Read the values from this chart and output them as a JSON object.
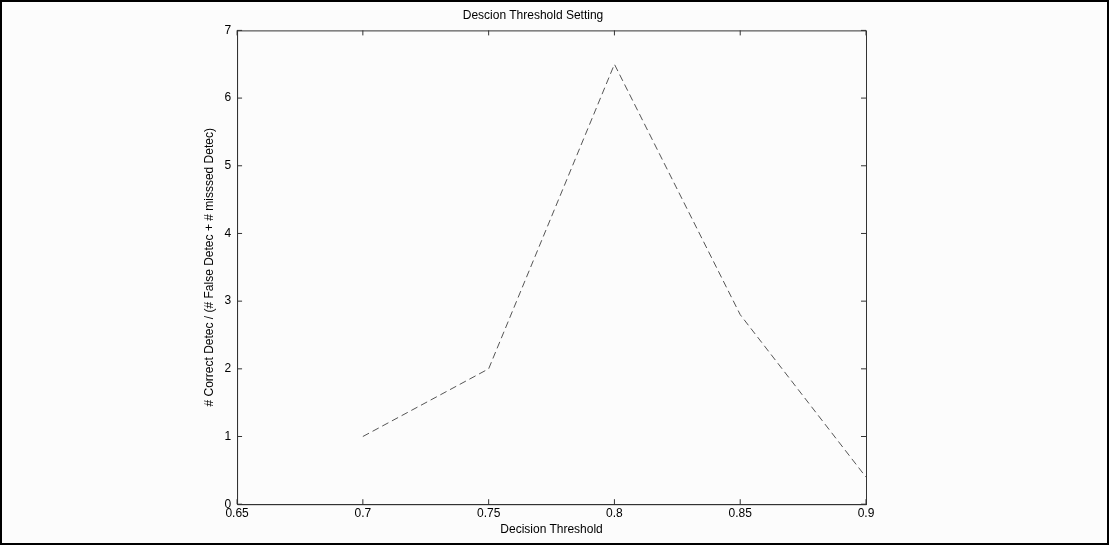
{
  "chart_data": {
    "type": "line",
    "title": "Descion Threshold Setting",
    "xlabel": "Decision Threshold",
    "ylabel": "# Correct Detec / (# False Detec + # misssed Detec)",
    "x": [
      0.7,
      0.75,
      0.8,
      0.85,
      0.9
    ],
    "series": [
      {
        "color": "#555555",
        "values": [
          1.0,
          2.0,
          6.5,
          2.8,
          0.4
        ]
      }
    ],
    "xlim": [
      0.65,
      0.9
    ],
    "xticks": [
      0.65,
      0.7,
      0.75,
      0.8,
      0.85,
      0.9
    ],
    "ylim": [
      0,
      7
    ],
    "yticks": [
      0,
      1,
      2,
      3,
      4,
      5,
      6,
      7
    ],
    "grid": false,
    "legend": false,
    "marker": "none",
    "line_style": "dashed"
  }
}
